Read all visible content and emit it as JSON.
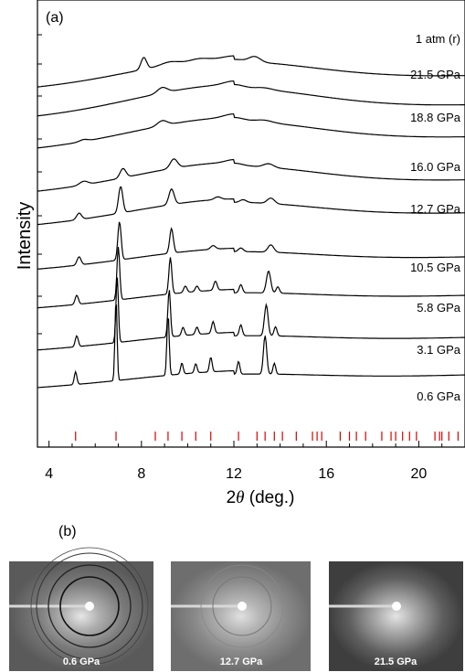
{
  "panel_a_label": "(a)",
  "panel_b_label": "(b)",
  "chart_data": {
    "type": "line",
    "title": "",
    "xlabel": "2θ (deg.)",
    "xlabel_prefix": "2",
    "xlabel_theta": "θ",
    "xlabel_suffix": " (deg.)",
    "ylabel": "Intensity",
    "xlim": [
      3.5,
      22.0
    ],
    "x_ticks": [
      4,
      8,
      12,
      16,
      20
    ],
    "x_tick_labels": [
      "4",
      "8",
      "12",
      "16",
      "20"
    ],
    "y_ticks_labeled": false,
    "grid": false,
    "legend": "none",
    "colors": {
      "traces": "#000000",
      "reflection_ticks": "#dd0000"
    },
    "series": [
      {
        "name": "1 atm (r)",
        "baseline": 0.22,
        "peaks": [
          [
            8.1,
            0.13,
            0.17
          ],
          [
            9.2,
            0.03,
            0.5
          ],
          [
            10.5,
            0.02,
            0.5
          ],
          [
            12.0,
            0.025,
            0.6
          ],
          [
            12.9,
            0.06,
            0.35
          ]
        ],
        "hump": 0.24
      },
      {
        "name": "21.5 GPa",
        "baseline": 0.21,
        "peaks": [
          [
            8.9,
            0.06,
            0.3
          ],
          [
            12.0,
            0.04,
            0.6
          ],
          [
            13.3,
            0.02,
            0.5
          ]
        ],
        "hump": 0.27
      },
      {
        "name": "18.8 GPa",
        "baseline": 0.2,
        "peaks": [
          [
            5.5,
            0.02,
            0.25
          ],
          [
            8.9,
            0.055,
            0.3
          ],
          [
            12.0,
            0.04,
            0.6
          ],
          [
            13.3,
            0.025,
            0.5
          ]
        ],
        "hump": 0.26
      },
      {
        "name": "16.0 GPa",
        "baseline": 0.19,
        "peaks": [
          [
            5.5,
            0.04,
            0.25
          ],
          [
            7.2,
            0.1,
            0.18
          ],
          [
            9.4,
            0.1,
            0.22
          ],
          [
            12.0,
            0.03,
            0.5
          ],
          [
            13.5,
            0.04,
            0.3
          ]
        ],
        "hump": 0.24
      },
      {
        "name": "12.7 GPa",
        "baseline": 0.18,
        "peaks": [
          [
            5.3,
            0.07,
            0.15
          ],
          [
            7.1,
            0.29,
            0.13
          ],
          [
            9.3,
            0.17,
            0.16
          ],
          [
            11.3,
            0.03,
            0.2
          ],
          [
            12.4,
            0.03,
            0.2
          ],
          [
            13.6,
            0.06,
            0.22
          ]
        ],
        "hump": 0.2
      },
      {
        "name": "10.5 GPa",
        "baseline": 0.15,
        "peaks": [
          [
            5.3,
            0.09,
            0.12
          ],
          [
            7.05,
            0.42,
            0.1
          ],
          [
            9.3,
            0.27,
            0.11
          ],
          [
            11.1,
            0.04,
            0.15
          ],
          [
            12.3,
            0.04,
            0.15
          ],
          [
            13.6,
            0.08,
            0.18
          ]
        ],
        "hump": 0.14
      },
      {
        "name": "5.8 GPa",
        "baseline": 0.14,
        "peaks": [
          [
            5.2,
            0.1,
            0.1
          ],
          [
            7.0,
            0.58,
            0.085
          ],
          [
            9.25,
            0.4,
            0.09
          ],
          [
            9.9,
            0.07,
            0.1
          ],
          [
            10.4,
            0.06,
            0.1
          ],
          [
            11.2,
            0.1,
            0.1
          ],
          [
            12.3,
            0.09,
            0.1
          ],
          [
            13.5,
            0.24,
            0.13
          ],
          [
            13.9,
            0.07,
            0.1
          ]
        ],
        "hump": 0.11
      },
      {
        "name": "3.1 GPa",
        "baseline": 0.13,
        "peaks": [
          [
            5.2,
            0.12,
            0.09
          ],
          [
            6.95,
            0.72,
            0.075
          ],
          [
            9.2,
            0.52,
            0.08
          ],
          [
            9.8,
            0.09,
            0.09
          ],
          [
            10.4,
            0.08,
            0.09
          ],
          [
            11.1,
            0.13,
            0.09
          ],
          [
            12.3,
            0.12,
            0.09
          ],
          [
            13.4,
            0.34,
            0.11
          ],
          [
            13.8,
            0.1,
            0.09
          ]
        ],
        "hump": 0.1
      },
      {
        "name": "0.6 GPa",
        "baseline": 0.12,
        "peaks": [
          [
            5.15,
            0.14,
            0.08
          ],
          [
            6.9,
            0.9,
            0.065
          ],
          [
            9.15,
            0.67,
            0.07
          ],
          [
            9.75,
            0.12,
            0.08
          ],
          [
            10.35,
            0.1,
            0.08
          ],
          [
            11.0,
            0.16,
            0.08
          ],
          [
            12.2,
            0.14,
            0.08
          ],
          [
            13.35,
            0.42,
            0.1
          ],
          [
            13.75,
            0.12,
            0.08
          ]
        ],
        "hump": 0.09
      }
    ],
    "reflection_positions": [
      5.15,
      6.9,
      8.6,
      9.15,
      9.75,
      10.35,
      11.0,
      12.2,
      13.0,
      13.35,
      13.75,
      14.1,
      14.7,
      15.4,
      15.6,
      15.8,
      16.6,
      17.0,
      17.3,
      17.7,
      18.4,
      18.8,
      19.0,
      19.3,
      19.6,
      19.9,
      20.7,
      20.9,
      21.0,
      21.3,
      21.7
    ]
  },
  "diffraction_images": [
    {
      "label": "0.6 GPa",
      "rings": "sharp"
    },
    {
      "label": "12.7 GPa",
      "rings": "faint"
    },
    {
      "label": "21.5 GPa",
      "rings": "none"
    }
  ]
}
